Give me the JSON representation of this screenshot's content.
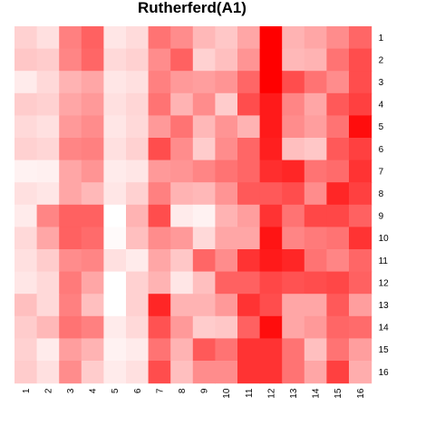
{
  "chart_data": {
    "type": "heatmap",
    "title": "Rutherferd(A1)",
    "x_labels": [
      "1",
      "2",
      "3",
      "4",
      "5",
      "6",
      "7",
      "8",
      "9",
      "10",
      "11",
      "12",
      "13",
      "14",
      "15",
      "16"
    ],
    "y_labels": [
      "1",
      "2",
      "3",
      "4",
      "5",
      "6",
      "7",
      "8",
      "9",
      "10",
      "11",
      "12",
      "13",
      "14",
      "15",
      "16"
    ],
    "value_range": [
      0,
      1
    ],
    "colors": {
      "low": "#ffffff",
      "high": "#ff0000"
    },
    "values": [
      [
        0.18,
        0.12,
        0.5,
        0.62,
        0.1,
        0.14,
        0.55,
        0.45,
        0.28,
        0.22,
        0.35,
        1.0,
        0.3,
        0.35,
        0.45,
        0.6
      ],
      [
        0.22,
        0.2,
        0.48,
        0.6,
        0.15,
        0.18,
        0.45,
        0.62,
        0.18,
        0.25,
        0.42,
        1.0,
        0.28,
        0.3,
        0.55,
        0.7
      ],
      [
        0.08,
        0.15,
        0.3,
        0.35,
        0.1,
        0.12,
        0.5,
        0.4,
        0.38,
        0.42,
        0.6,
        1.0,
        0.7,
        0.55,
        0.45,
        0.7
      ],
      [
        0.2,
        0.18,
        0.35,
        0.4,
        0.12,
        0.16,
        0.55,
        0.3,
        0.45,
        0.2,
        0.7,
        0.9,
        0.48,
        0.35,
        0.65,
        0.75
      ],
      [
        0.15,
        0.12,
        0.4,
        0.45,
        0.1,
        0.15,
        0.4,
        0.55,
        0.28,
        0.42,
        0.3,
        0.9,
        0.45,
        0.38,
        0.55,
        0.95
      ],
      [
        0.18,
        0.16,
        0.48,
        0.5,
        0.12,
        0.18,
        0.7,
        0.45,
        0.2,
        0.45,
        0.6,
        0.88,
        0.25,
        0.22,
        0.65,
        0.75
      ],
      [
        0.05,
        0.06,
        0.35,
        0.42,
        0.08,
        0.1,
        0.4,
        0.42,
        0.48,
        0.55,
        0.6,
        0.82,
        0.85,
        0.55,
        0.58,
        0.8
      ],
      [
        0.12,
        0.1,
        0.35,
        0.28,
        0.1,
        0.18,
        0.5,
        0.3,
        0.28,
        0.42,
        0.65,
        0.65,
        0.7,
        0.45,
        0.85,
        0.75
      ],
      [
        0.08,
        0.48,
        0.62,
        0.62,
        0.0,
        0.3,
        0.7,
        0.08,
        0.05,
        0.3,
        0.38,
        0.8,
        0.55,
        0.72,
        0.72,
        0.62
      ],
      [
        0.15,
        0.35,
        0.62,
        0.58,
        0.02,
        0.25,
        0.45,
        0.4,
        0.15,
        0.35,
        0.35,
        0.92,
        0.48,
        0.52,
        0.55,
        0.8
      ],
      [
        0.12,
        0.2,
        0.45,
        0.48,
        0.12,
        0.08,
        0.35,
        0.22,
        0.6,
        0.45,
        0.8,
        0.9,
        0.85,
        0.55,
        0.48,
        0.6
      ],
      [
        0.1,
        0.15,
        0.52,
        0.35,
        0.0,
        0.18,
        0.3,
        0.1,
        0.25,
        0.62,
        0.62,
        0.72,
        0.68,
        0.7,
        0.72,
        0.62
      ],
      [
        0.25,
        0.15,
        0.5,
        0.25,
        0.0,
        0.18,
        0.85,
        0.3,
        0.3,
        0.4,
        0.8,
        0.7,
        0.35,
        0.35,
        0.65,
        0.38
      ],
      [
        0.2,
        0.28,
        0.55,
        0.5,
        0.08,
        0.15,
        0.68,
        0.4,
        0.2,
        0.22,
        0.62,
        0.95,
        0.35,
        0.4,
        0.6,
        0.58
      ],
      [
        0.18,
        0.08,
        0.38,
        0.3,
        0.05,
        0.08,
        0.55,
        0.3,
        0.65,
        0.55,
        0.8,
        0.8,
        0.55,
        0.25,
        0.55,
        0.38
      ],
      [
        0.2,
        0.12,
        0.45,
        0.2,
        0.08,
        0.12,
        0.7,
        0.25,
        0.45,
        0.45,
        0.8,
        0.8,
        0.55,
        0.35,
        0.75,
        0.32
      ]
    ]
  }
}
